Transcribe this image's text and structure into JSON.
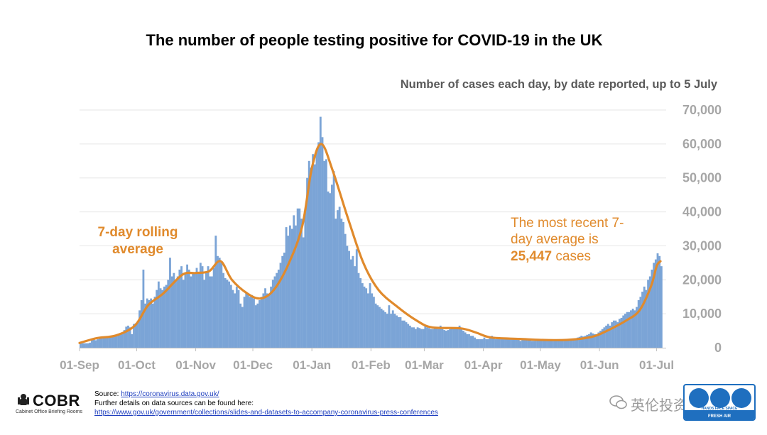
{
  "header": {
    "title": "The number of people testing positive for COVID-19 in the UK",
    "subtitle": "Number of cases each day, by date reported, up to 5 July"
  },
  "chart_data": {
    "type": "bar",
    "title": "The number of people testing positive for COVID-19 in the UK",
    "subtitle": "Number of cases each day, by date reported, up to 5 July",
    "x_start": "2020-09-01",
    "x_end": "2021-07-05",
    "ylim": [
      0,
      70000
    ],
    "y_ticks": [
      0,
      10000,
      20000,
      30000,
      40000,
      50000,
      60000,
      70000
    ],
    "y_tick_labels": [
      "0",
      "10,000",
      "20,000",
      "30,000",
      "40,000",
      "50,000",
      "60,000",
      "70,000"
    ],
    "x_ticks": [
      "2020-09-01",
      "2020-10-01",
      "2020-11-01",
      "2020-12-01",
      "2021-01-01",
      "2021-02-01",
      "2021-03-01",
      "2021-04-01",
      "2021-05-01",
      "2021-06-01",
      "2021-07-01"
    ],
    "x_tick_labels": [
      "01-Sep",
      "01-Oct",
      "01-Nov",
      "01-Dec",
      "01-Jan",
      "01-Feb",
      "01-Mar",
      "01-Apr",
      "01-May",
      "01-Jun",
      "01-Jul"
    ],
    "grid": true,
    "y_axis_side": "right",
    "series": [
      {
        "name": "7-day rolling average",
        "type": "line",
        "points": [
          [
            "2020-09-01",
            1400
          ],
          [
            "2020-09-10",
            2800
          ],
          [
            "2020-09-20",
            3600
          ],
          [
            "2020-09-30",
            6500
          ],
          [
            "2020-10-07",
            12500
          ],
          [
            "2020-10-15",
            16000
          ],
          [
            "2020-10-25",
            21500
          ],
          [
            "2020-11-01",
            22000
          ],
          [
            "2020-11-08",
            22500
          ],
          [
            "2020-11-14",
            25500
          ],
          [
            "2020-11-20",
            20000
          ],
          [
            "2020-11-28",
            16000
          ],
          [
            "2020-12-05",
            14500
          ],
          [
            "2020-12-12",
            17000
          ],
          [
            "2020-12-20",
            25000
          ],
          [
            "2020-12-27",
            36000
          ],
          [
            "2021-01-01",
            53000
          ],
          [
            "2021-01-06",
            60000
          ],
          [
            "2021-01-12",
            52000
          ],
          [
            "2021-01-20",
            38000
          ],
          [
            "2021-01-28",
            25000
          ],
          [
            "2021-02-05",
            17000
          ],
          [
            "2021-02-15",
            12000
          ],
          [
            "2021-02-25",
            8000
          ],
          [
            "2021-03-05",
            6000
          ],
          [
            "2021-03-20",
            5700
          ],
          [
            "2021-03-28",
            4500
          ],
          [
            "2021-04-05",
            3000
          ],
          [
            "2021-04-20",
            2600
          ],
          [
            "2021-05-01",
            2300
          ],
          [
            "2021-05-15",
            2300
          ],
          [
            "2021-05-28",
            3200
          ],
          [
            "2021-06-05",
            5000
          ],
          [
            "2021-06-15",
            8000
          ],
          [
            "2021-06-22",
            11000
          ],
          [
            "2021-06-28",
            18000
          ],
          [
            "2021-07-01",
            24000
          ],
          [
            "2021-07-03",
            25447
          ]
        ]
      },
      {
        "name": "Number of cases each day",
        "type": "bar",
        "color": "#7ba4d6",
        "daily_values": [
          1300,
          1300,
          1300,
          1300,
          1300,
          1500,
          2200,
          2400,
          2200,
          2500,
          2800,
          3100,
          3200,
          3000,
          3100,
          3300,
          3300,
          3200,
          3500,
          3800,
          4000,
          4200,
          4500,
          5200,
          6200,
          6500,
          6000,
          4000,
          7000,
          7200,
          7500,
          11000,
          14000,
          23000,
          13000,
          14500,
          14000,
          14500,
          13000,
          15000,
          17000,
          19500,
          17500,
          17000,
          18000,
          18500,
          20000,
          26500,
          21000,
          22000,
          20000,
          21000,
          23000,
          24000,
          20000,
          22000,
          24500,
          23000,
          21000,
          22000,
          22000,
          23500,
          22000,
          25000,
          24000,
          20000,
          22000,
          24000,
          21000,
          21000,
          23500,
          33000,
          27000,
          26500,
          25000,
          22000,
          20500,
          20000,
          19500,
          18500,
          17000,
          16000,
          18000,
          17000,
          13000,
          12000,
          15000,
          16500,
          16000,
          15000,
          15500,
          14500,
          12500,
          13000,
          14000,
          15000,
          16000,
          17500,
          16000,
          15500,
          18000,
          20000,
          21000,
          22000,
          23000,
          25000,
          27000,
          28000,
          35500,
          33000,
          36000,
          35000,
          39000,
          36000,
          41000,
          41000,
          38000,
          32500,
          41000,
          50000,
          55000,
          53000,
          57000,
          54000,
          58000,
          60500,
          68000,
          62000,
          55000,
          55500,
          46000,
          45500,
          48000,
          52000,
          38000,
          40500,
          41500,
          38000,
          37000,
          33500,
          30000,
          28500,
          26000,
          27000,
          24000,
          29000,
          22000,
          20500,
          19000,
          18000,
          17500,
          16000,
          19000,
          16000,
          15000,
          13000,
          12500,
          12000,
          11500,
          11000,
          10500,
          10000,
          12500,
          10000,
          11000,
          10000,
          9500,
          9000,
          9000,
          8000,
          8000,
          7500,
          7000,
          6500,
          6000,
          6000,
          5500,
          6000,
          5800,
          5500,
          5500,
          6500,
          6000,
          5800,
          5500,
          5500,
          6000,
          5800,
          5500,
          6500,
          5500,
          5200,
          5000,
          5200,
          5500,
          5800,
          6000,
          5500,
          5500,
          6500,
          5500,
          5000,
          4500,
          4000,
          4000,
          3500,
          3500,
          3000,
          2500,
          2500,
          2500,
          2500,
          3000,
          2500,
          2500,
          3000,
          3500,
          3000,
          2500,
          2500,
          2500,
          2500,
          2500,
          2500,
          2500,
          2700,
          2500,
          2500,
          2500,
          2500,
          2500,
          2000,
          2500,
          2500,
          2500,
          2500,
          2200,
          2000,
          2000,
          2000,
          2000,
          2000,
          2500,
          2000,
          2200,
          2200,
          2200,
          2300,
          2300,
          2400,
          2300,
          2300,
          2500,
          2400,
          2500,
          2500,
          2300,
          2600,
          2500,
          2600,
          2700,
          3000,
          3200,
          3500,
          3300,
          3500,
          3800,
          4000,
          4500,
          4200,
          4000,
          4000,
          4500,
          5000,
          5500,
          6000,
          6500,
          7000,
          6500,
          7500,
          8000,
          8000,
          7500,
          8500,
          8800,
          9500,
          10000,
          10500,
          10500,
          11000,
          11500,
          11000,
          12000,
          14000,
          15000,
          16500,
          18000,
          17000,
          20000,
          21000,
          23000,
          25000,
          26000,
          27800,
          27000,
          24000
        ]
      }
    ],
    "annotations": [
      {
        "text_lines": [
          "7-day rolling",
          "average"
        ]
      },
      {
        "line1": "The most recent 7-",
        "line2": "day average is",
        "value": "25,447",
        "suffix": " cases"
      }
    ]
  },
  "footer": {
    "source_label": "Source: ",
    "source_link": "https://coronavirus.data.gov.uk/",
    "details_text": "Further details on data sources can be found here:",
    "details_link": "https://www.gov.uk/government/collections/slides-and-datasets-to-accompany-coronavirus-press-conferences",
    "logo_text": "COBR",
    "logo_sub": "Cabinet Office Briefing Rooms",
    "watermark_text": "英伦投资客",
    "badge_text": "FRESH AIR",
    "badge_top_text": "HANDS FACE SPACE"
  }
}
